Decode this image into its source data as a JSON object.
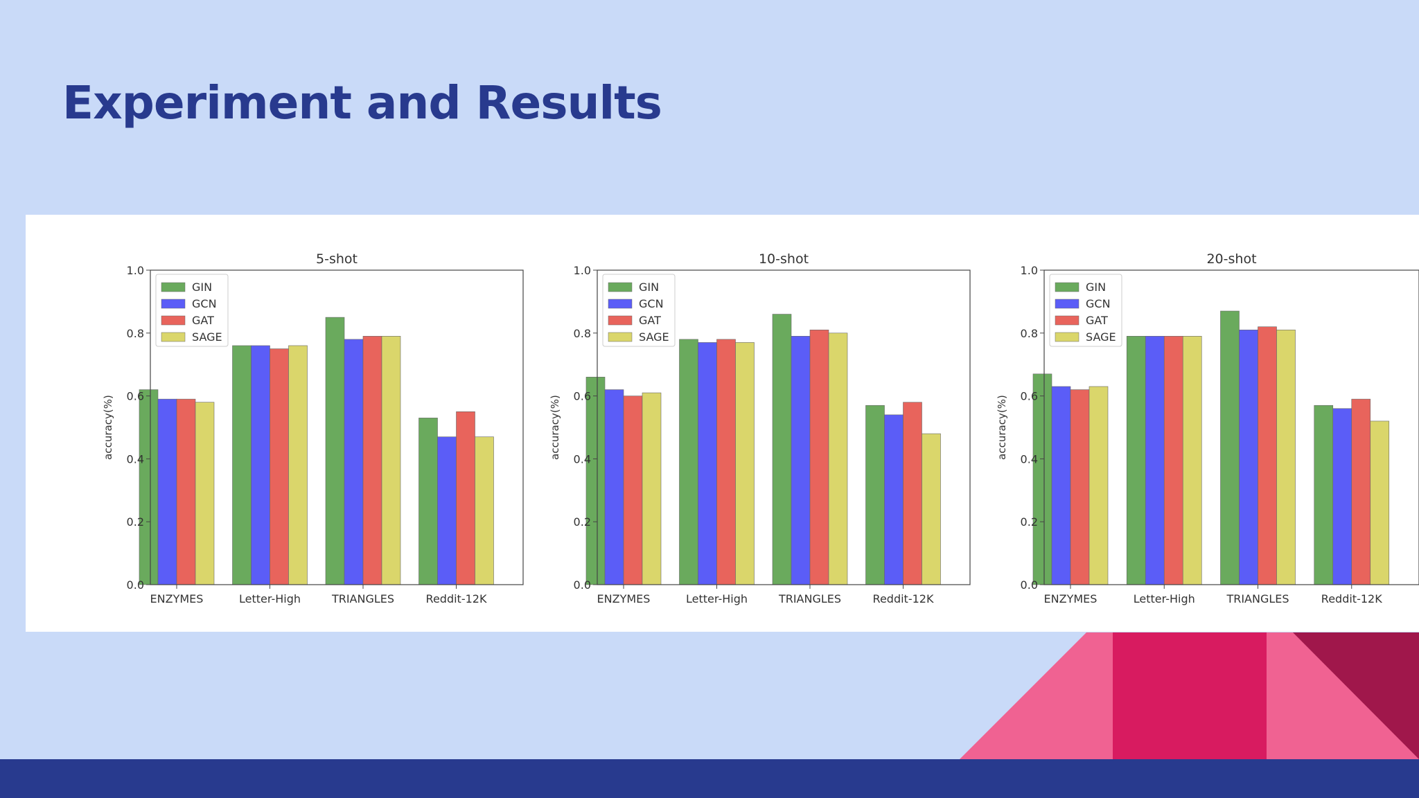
{
  "slide": {
    "title": "Experiment and Results"
  },
  "colors": {
    "background": "#c9daf8",
    "title": "#283a8e",
    "footer": "#283a8e",
    "deco_pink": "#f06292",
    "deco_magenta": "#d81b60",
    "deco_dark": "#a0174b"
  },
  "legend": [
    {
      "name": "GIN",
      "color": "#6aaa5d"
    },
    {
      "name": "GCN",
      "color": "#5b5df7"
    },
    {
      "name": "GAT",
      "color": "#e8645c"
    },
    {
      "name": "SAGE",
      "color": "#dad66b"
    }
  ],
  "chart_data": [
    {
      "type": "bar",
      "title": "5-shot",
      "xlabel": "",
      "ylabel": "accuracy(%)",
      "ylim": [
        0,
        1.0
      ],
      "yticks": [
        "0.0",
        "0.2",
        "0.4",
        "0.6",
        "0.8",
        "1.0"
      ],
      "categories": [
        "ENZYMES",
        "Letter-High",
        "TRIANGLES",
        "Reddit-12K"
      ],
      "legend_position": "upper-left",
      "series": [
        {
          "name": "GIN",
          "values": [
            0.62,
            0.76,
            0.85,
            0.53
          ]
        },
        {
          "name": "GCN",
          "values": [
            0.59,
            0.76,
            0.78,
            0.47
          ]
        },
        {
          "name": "GAT",
          "values": [
            0.59,
            0.75,
            0.79,
            0.55
          ]
        },
        {
          "name": "SAGE",
          "values": [
            0.58,
            0.76,
            0.79,
            0.47
          ]
        }
      ]
    },
    {
      "type": "bar",
      "title": "10-shot",
      "xlabel": "",
      "ylabel": "accuracy(%)",
      "ylim": [
        0,
        1.0
      ],
      "yticks": [
        "0.0",
        "0.2",
        "0.4",
        "0.6",
        "0.8",
        "1.0"
      ],
      "categories": [
        "ENZYMES",
        "Letter-High",
        "TRIANGLES",
        "Reddit-12K"
      ],
      "legend_position": "upper-left",
      "series": [
        {
          "name": "GIN",
          "values": [
            0.66,
            0.78,
            0.86,
            0.57
          ]
        },
        {
          "name": "GCN",
          "values": [
            0.62,
            0.77,
            0.79,
            0.54
          ]
        },
        {
          "name": "GAT",
          "values": [
            0.6,
            0.78,
            0.81,
            0.58
          ]
        },
        {
          "name": "SAGE",
          "values": [
            0.61,
            0.77,
            0.8,
            0.48
          ]
        }
      ]
    },
    {
      "type": "bar",
      "title": "20-shot",
      "xlabel": "",
      "ylabel": "accuracy(%)",
      "ylim": [
        0,
        1.0
      ],
      "yticks": [
        "0.0",
        "0.2",
        "0.4",
        "0.6",
        "0.8",
        "1.0"
      ],
      "categories": [
        "ENZYMES",
        "Letter-High",
        "TRIANGLES",
        "Reddit-12K"
      ],
      "legend_position": "upper-left",
      "series": [
        {
          "name": "GIN",
          "values": [
            0.67,
            0.79,
            0.87,
            0.57
          ]
        },
        {
          "name": "GCN",
          "values": [
            0.63,
            0.79,
            0.81,
            0.56
          ]
        },
        {
          "name": "GAT",
          "values": [
            0.62,
            0.79,
            0.82,
            0.59
          ]
        },
        {
          "name": "SAGE",
          "values": [
            0.63,
            0.79,
            0.81,
            0.52
          ]
        }
      ]
    }
  ]
}
